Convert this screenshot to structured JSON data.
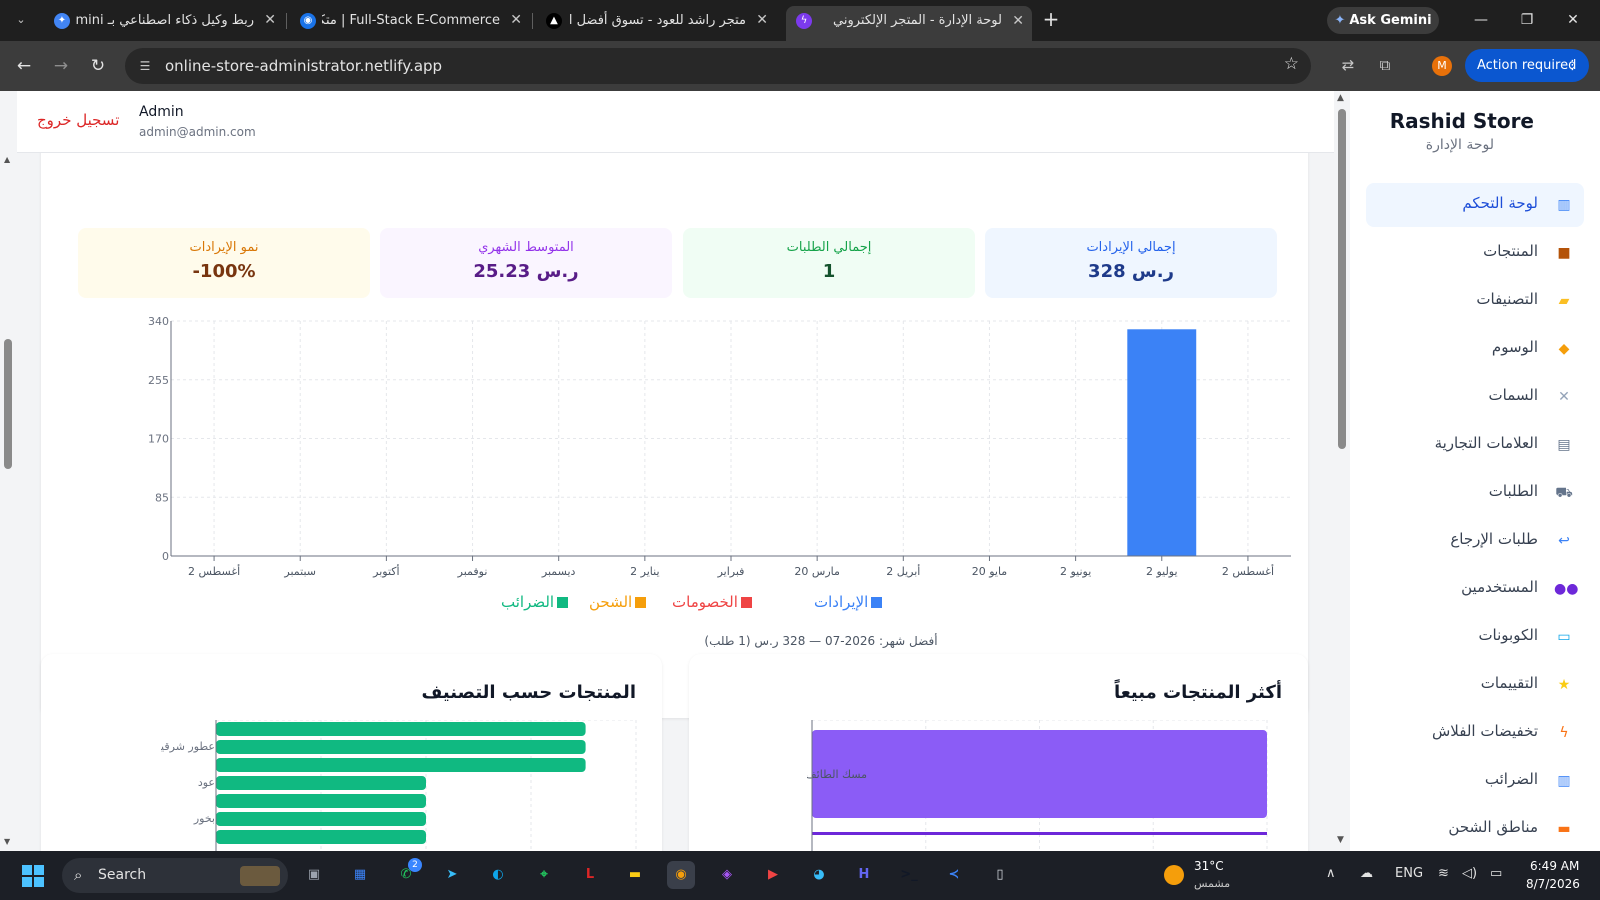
{
  "browser": {
    "tabs": [
      {
        "title": "ربط وكيل ذكاء اصطناعي بـ Gemini",
        "x": 44,
        "w": 240
      },
      {
        "title": "Full-Stack E-Commerce | متكامل",
        "x": 290,
        "w": 240
      },
      {
        "title": "متجر راشد للعود - تسوق أفضل ال",
        "x": 536,
        "w": 240
      },
      {
        "title": "لوحة الإدارة - المتجر الإلكتروني",
        "x": 786,
        "w": 246
      }
    ],
    "ask_gemini": "Ask Gemini",
    "url": "online-store-administrator.netlify.app",
    "profile_initial": "M",
    "action_required": "Action required"
  },
  "topbar": {
    "logout": "تسجيل خروج",
    "user_name": "Admin",
    "user_email": "admin@admin.com"
  },
  "stats": [
    {
      "label": "إجمالي الإيرادات",
      "value": "328 ر.س",
      "bg": "#eff6ff",
      "lbl_color": "#2563eb",
      "val_color": "#1e3a8a"
    },
    {
      "label": "إجمالي الطلبات",
      "value": "1",
      "bg": "#f0fdf4",
      "lbl_color": "#16a34a",
      "val_color": "#14532d"
    },
    {
      "label": "المتوسط الشهري",
      "value": "25.23 ر.س",
      "bg": "#faf5ff",
      "lbl_color": "#9333ea",
      "val_color": "#581c87"
    },
    {
      "label": "نمو الإيرادات",
      "value": "-100%",
      "bg": "#fffbeb",
      "lbl_color": "#d97706",
      "val_color": "#78350f"
    }
  ],
  "revenue_chart": {
    "legend": [
      {
        "name": "الإيرادات",
        "color": "#3b82f6"
      },
      {
        "name": "الخصومات",
        "color": "#ef4444"
      },
      {
        "name": "الشحن",
        "color": "#f59e0b"
      },
      {
        "name": "الضرائب",
        "color": "#10b981"
      }
    ],
    "best_month": "أفضل شهر: 2026-07 — 328 ر.س (1 طلب)"
  },
  "chart_data": [
    {
      "type": "bar",
      "categories": [
        "أغسطس 2",
        "يوليو 2",
        "يونيو 2",
        "مايو 20",
        "أبريل 2",
        "مارس 20",
        "فبراير",
        "يناير 2",
        "ديسمبر",
        "نوفمبر",
        "أكتوبر",
        "سبتمبر",
        "أغسطس 2"
      ],
      "series": [
        {
          "name": "الإيرادات",
          "values": [
            0,
            328,
            0,
            0,
            0,
            0,
            0,
            0,
            0,
            0,
            0,
            0,
            0
          ]
        }
      ],
      "yticks": [
        0,
        85,
        170,
        255,
        340
      ],
      "ylim": [
        0,
        340
      ],
      "grid": true,
      "legend": "bottom"
    },
    {
      "type": "bar",
      "title": "أكثر المنتجات مبيعاً",
      "orientation": "horizontal",
      "categories": [
        "مسك الطائف"
      ],
      "values": [
        1
      ],
      "grid": true
    },
    {
      "type": "bar",
      "title": "المنتجات حسب التصنيف",
      "orientation": "horizontal",
      "categories": [
        "عطور شرقية",
        "عود",
        "بخور"
      ],
      "grid": true
    }
  ],
  "top_products_title": "أكثر المنتجات مبيعاً",
  "by_category_title": "المنتجات حسب التصنيف",
  "sidebar": {
    "brand": "Rashid Store",
    "subtitle": "لوحة الإدارة",
    "items": [
      {
        "label": "لوحة التحكم",
        "icon": "bar-chart-icon",
        "glyph": "▥",
        "color": "#3b82f6",
        "active": true
      },
      {
        "label": "المنتجات",
        "icon": "package-icon",
        "glyph": "■",
        "color": "#b45309",
        "active": false
      },
      {
        "label": "التصنيفات",
        "icon": "folder-icon",
        "glyph": "▰",
        "color": "#fbbf24",
        "active": false
      },
      {
        "label": "الوسوم",
        "icon": "tag-icon",
        "glyph": "◆",
        "color": "#f59e0b",
        "active": false
      },
      {
        "label": "السمات",
        "icon": "wrench-icon",
        "glyph": "✕",
        "color": "#94a3b8",
        "active": false
      },
      {
        "label": "العلامات التجارية",
        "icon": "building-icon",
        "glyph": "▤",
        "color": "#64748b",
        "active": false
      },
      {
        "label": "الطلبات",
        "icon": "cart-icon",
        "glyph": "⛟",
        "color": "#64748b",
        "active": false
      },
      {
        "label": "طلبات الإرجاع",
        "icon": "return-icon",
        "glyph": "↩",
        "color": "#3b82f6",
        "active": false
      },
      {
        "label": "المستخدمين",
        "icon": "users-icon",
        "glyph": "●●",
        "color": "#6d28d9",
        "active": false
      },
      {
        "label": "الكوبونات",
        "icon": "card-icon",
        "glyph": "▭",
        "color": "#0ea5e9",
        "active": false
      },
      {
        "label": "التقييمات",
        "icon": "star-icon",
        "glyph": "★",
        "color": "#facc15",
        "active": false
      },
      {
        "label": "تخفيضات الفلاش",
        "icon": "lightning-icon",
        "glyph": "ϟ",
        "color": "#f97316",
        "active": false
      },
      {
        "label": "الضرائب",
        "icon": "chart-icon",
        "glyph": "▥",
        "color": "#3b82f6",
        "active": false
      },
      {
        "label": "مناطق الشحن",
        "icon": "truck-icon",
        "glyph": "▬",
        "color": "#f97316",
        "active": false
      }
    ]
  },
  "taskbar": {
    "search": "Search",
    "whatsapp_badge": "2",
    "weather_temp": "31°C",
    "weather_desc": "مشمس",
    "lang": "ENG",
    "time": "6:49 AM",
    "date": "8/7/2026"
  }
}
